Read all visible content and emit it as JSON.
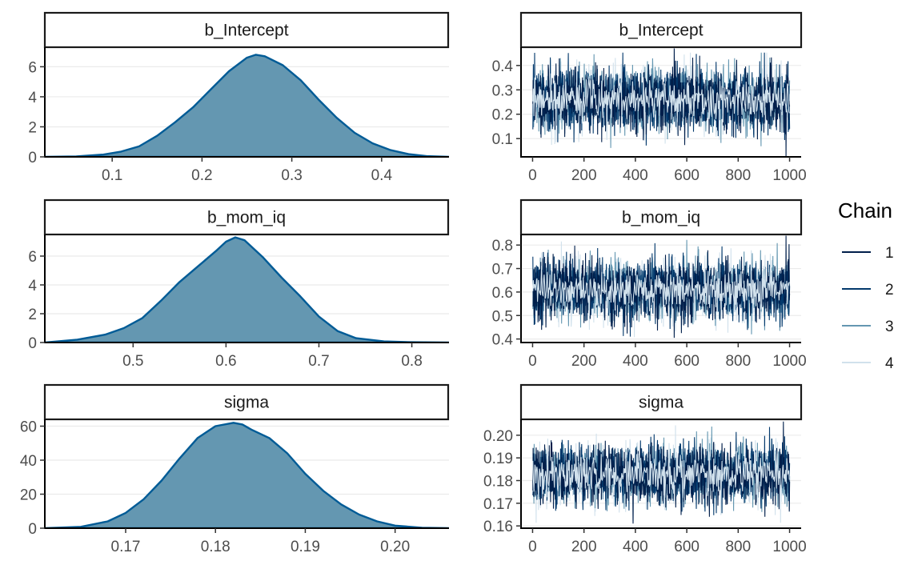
{
  "chart_data": [
    {
      "type": "area",
      "panel": "density",
      "title": "b_Intercept",
      "xlim": [
        0.025,
        0.475
      ],
      "ylim": [
        0,
        7.3
      ],
      "xticks": [
        0.1,
        0.2,
        0.3,
        0.4
      ],
      "xtick_labels": [
        "0.1",
        "0.2",
        "0.3",
        "0.4"
      ],
      "yticks": [
        0,
        2,
        4,
        6
      ],
      "ytick_labels": [
        "0",
        "2",
        "4",
        "6"
      ],
      "x": [
        0.025,
        0.06,
        0.09,
        0.11,
        0.13,
        0.15,
        0.17,
        0.19,
        0.21,
        0.23,
        0.25,
        0.26,
        0.27,
        0.29,
        0.31,
        0.33,
        0.35,
        0.37,
        0.39,
        0.41,
        0.43,
        0.45,
        0.475
      ],
      "y": [
        0.0,
        0.03,
        0.15,
        0.35,
        0.7,
        1.4,
        2.3,
        3.3,
        4.5,
        5.7,
        6.6,
        6.8,
        6.7,
        6.1,
        5.1,
        3.8,
        2.6,
        1.6,
        0.9,
        0.45,
        0.18,
        0.05,
        0.0
      ],
      "xlabel": "",
      "ylabel": ""
    },
    {
      "type": "line",
      "panel": "trace",
      "title": "b_Intercept",
      "xlim": [
        -45,
        1045
      ],
      "ylim": [
        0.025,
        0.475
      ],
      "xticks": [
        0,
        200,
        400,
        600,
        800,
        1000
      ],
      "xtick_labels": [
        "0",
        "200",
        "400",
        "600",
        "800",
        "1000"
      ],
      "yticks": [
        0.1,
        0.2,
        0.3,
        0.4
      ],
      "ytick_labels": [
        "0.1",
        "0.2",
        "0.3",
        "0.4"
      ],
      "iterations": 1000,
      "mean": 0.26,
      "sd": 0.062,
      "seed": 11,
      "spikes": [
        [
          550,
          0.47
        ],
        [
          985,
          0.025
        ]
      ]
    },
    {
      "type": "area",
      "panel": "density",
      "title": "b_mom_iq",
      "xlim": [
        0.405,
        0.84
      ],
      "ylim": [
        0,
        7.5
      ],
      "xticks": [
        0.5,
        0.6,
        0.7,
        0.8
      ],
      "xtick_labels": [
        "0.5",
        "0.6",
        "0.7",
        "0.8"
      ],
      "yticks": [
        0,
        2,
        4,
        6
      ],
      "ytick_labels": [
        "0",
        "2",
        "4",
        "6"
      ],
      "x": [
        0.405,
        0.44,
        0.47,
        0.49,
        0.51,
        0.53,
        0.55,
        0.57,
        0.59,
        0.6,
        0.61,
        0.62,
        0.64,
        0.66,
        0.68,
        0.7,
        0.72,
        0.74,
        0.77,
        0.8,
        0.84
      ],
      "y": [
        0.0,
        0.2,
        0.55,
        1.0,
        1.7,
        2.9,
        4.2,
        5.3,
        6.4,
        7.0,
        7.3,
        7.1,
        5.9,
        4.5,
        3.2,
        1.8,
        0.8,
        0.3,
        0.08,
        0.02,
        0.0
      ],
      "xlabel": "",
      "ylabel": ""
    },
    {
      "type": "line",
      "panel": "trace",
      "title": "b_mom_iq",
      "xlim": [
        -45,
        1045
      ],
      "ylim": [
        0.385,
        0.845
      ],
      "xticks": [
        0,
        200,
        400,
        600,
        800,
        1000
      ],
      "xtick_labels": [
        "0",
        "200",
        "400",
        "600",
        "800",
        "1000"
      ],
      "yticks": [
        0.4,
        0.5,
        0.6,
        0.7,
        0.8
      ],
      "ytick_labels": [
        "0.4",
        "0.5",
        "0.6",
        "0.7",
        "0.8"
      ],
      "iterations": 1000,
      "mean": 0.607,
      "sd": 0.062,
      "seed": 23,
      "spikes": [
        [
          985,
          0.84
        ],
        [
          550,
          0.405
        ]
      ]
    },
    {
      "type": "area",
      "panel": "density",
      "title": "sigma",
      "xlim": [
        0.161,
        0.206
      ],
      "ylim": [
        0,
        64
      ],
      "xticks": [
        0.17,
        0.18,
        0.19,
        0.2
      ],
      "xtick_labels": [
        "0.17",
        "0.18",
        "0.19",
        "0.20"
      ],
      "yticks": [
        0,
        20,
        40,
        60
      ],
      "ytick_labels": [
        "0",
        "20",
        "40",
        "60"
      ],
      "x": [
        0.161,
        0.165,
        0.168,
        0.17,
        0.172,
        0.174,
        0.176,
        0.178,
        0.18,
        0.182,
        0.183,
        0.184,
        0.186,
        0.188,
        0.19,
        0.192,
        0.194,
        0.196,
        0.198,
        0.2,
        0.203,
        0.206
      ],
      "y": [
        0.0,
        0.8,
        4,
        9,
        17,
        28,
        41,
        53,
        60,
        62,
        61,
        58,
        53,
        44,
        32,
        22,
        14,
        8,
        4,
        1.5,
        0.3,
        0.0
      ],
      "xlabel": "",
      "ylabel": ""
    },
    {
      "type": "line",
      "panel": "trace",
      "title": "sigma",
      "xlim": [
        -45,
        1045
      ],
      "ylim": [
        0.159,
        0.207
      ],
      "xticks": [
        0,
        200,
        400,
        600,
        800,
        1000
      ],
      "xtick_labels": [
        "0",
        "200",
        "400",
        "600",
        "800",
        "1000"
      ],
      "yticks": [
        0.16,
        0.17,
        0.18,
        0.19,
        0.2
      ],
      "ytick_labels": [
        "0.16",
        "0.17",
        "0.18",
        "0.19",
        "0.20"
      ],
      "iterations": 1000,
      "mean": 0.1825,
      "sd": 0.0063,
      "seed": 37,
      "spikes": [
        [
          390,
          0.161
        ],
        [
          975,
          0.206
        ]
      ]
    }
  ],
  "legend": {
    "title": "Chain",
    "items": [
      "1",
      "2",
      "3",
      "4"
    ],
    "colors": [
      "#011f4b",
      "#03396c",
      "#6497b1",
      "#d1e1ec"
    ]
  },
  "colors": {
    "density_fill": "#6497b1",
    "density_line": "#005b96"
  }
}
